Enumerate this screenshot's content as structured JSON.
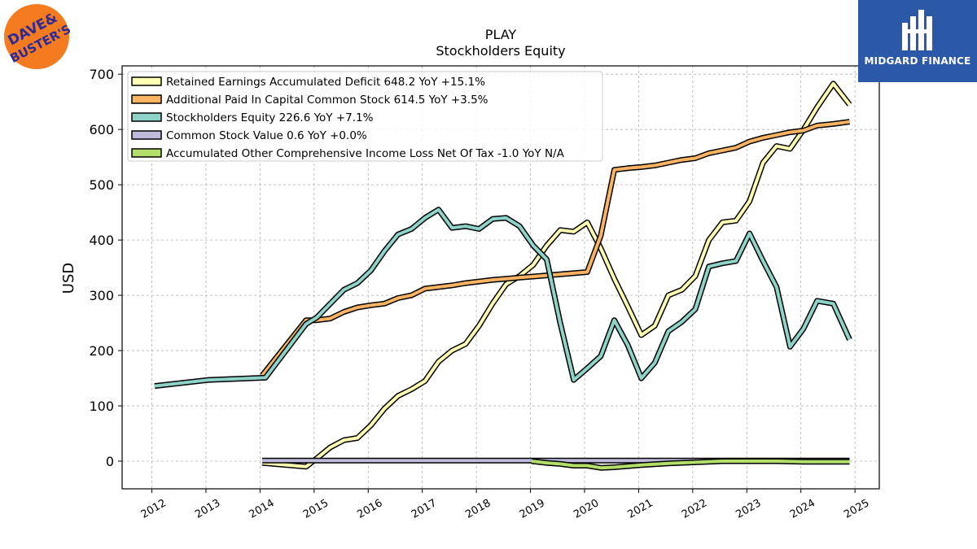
{
  "brand": {
    "left_logo_text": "DAVE & BUSTER'S",
    "right_logo_text": "MIDGARD FINANCE",
    "right_logo_bg": "#2c58a8"
  },
  "chart_data": {
    "type": "line",
    "title": "PLAY",
    "subtitle": "Stockholders  Equity",
    "xlabel": "",
    "ylabel": "USD",
    "ylim": [
      -50,
      715
    ],
    "xlim": [
      2011.45,
      2025.45
    ],
    "yticks": [
      0,
      100,
      200,
      300,
      400,
      500,
      600,
      700
    ],
    "xticks": [
      "2012",
      "2013",
      "2014",
      "2015",
      "2016",
      "2017",
      "2018",
      "2019",
      "2020",
      "2021",
      "2022",
      "2023",
      "2024",
      "2025"
    ],
    "grid": true,
    "legend_position": "top-left",
    "series": [
      {
        "name": "Retained Earnings Accumulated Deficit  648.2 YoY +15.1%",
        "color": "#ffffb3",
        "points": [
          [
            2014.04,
            -3
          ],
          [
            2014.85,
            -10
          ],
          [
            2015.05,
            5
          ],
          [
            2015.3,
            25
          ],
          [
            2015.55,
            38
          ],
          [
            2015.8,
            42
          ],
          [
            2016.05,
            65
          ],
          [
            2016.3,
            95
          ],
          [
            2016.55,
            118
          ],
          [
            2016.8,
            130
          ],
          [
            2017.05,
            145
          ],
          [
            2017.3,
            180
          ],
          [
            2017.55,
            200
          ],
          [
            2017.8,
            212
          ],
          [
            2018.05,
            245
          ],
          [
            2018.3,
            285
          ],
          [
            2018.55,
            320
          ],
          [
            2018.8,
            335
          ],
          [
            2019.05,
            355
          ],
          [
            2019.3,
            390
          ],
          [
            2019.55,
            418
          ],
          [
            2019.8,
            415
          ],
          [
            2020.05,
            432
          ],
          [
            2020.3,
            385
          ],
          [
            2020.55,
            330
          ],
          [
            2020.8,
            280
          ],
          [
            2021.05,
            228
          ],
          [
            2021.3,
            245
          ],
          [
            2021.55,
            300
          ],
          [
            2021.8,
            310
          ],
          [
            2022.05,
            335
          ],
          [
            2022.3,
            400
          ],
          [
            2022.55,
            432
          ],
          [
            2022.8,
            435
          ],
          [
            2023.05,
            470
          ],
          [
            2023.3,
            540
          ],
          [
            2023.55,
            570
          ],
          [
            2023.8,
            565
          ],
          [
            2024.05,
            600
          ],
          [
            2024.3,
            640
          ],
          [
            2024.6,
            683
          ],
          [
            2024.9,
            645
          ]
        ]
      },
      {
        "name": "Additional Paid In Capital Common Stock  614.5 YoY +3.5%",
        "color": "#fdb462",
        "points": [
          [
            2014.04,
            155
          ],
          [
            2014.85,
            255
          ],
          [
            2015.05,
            255
          ],
          [
            2015.3,
            258
          ],
          [
            2015.55,
            270
          ],
          [
            2015.8,
            278
          ],
          [
            2016.05,
            282
          ],
          [
            2016.3,
            285
          ],
          [
            2016.55,
            295
          ],
          [
            2016.8,
            300
          ],
          [
            2017.05,
            312
          ],
          [
            2017.3,
            315
          ],
          [
            2017.55,
            318
          ],
          [
            2017.8,
            322
          ],
          [
            2018.05,
            325
          ],
          [
            2018.3,
            328
          ],
          [
            2018.55,
            330
          ],
          [
            2018.8,
            332
          ],
          [
            2019.05,
            334
          ],
          [
            2019.3,
            336
          ],
          [
            2019.55,
            338
          ],
          [
            2019.8,
            340
          ],
          [
            2020.05,
            342
          ],
          [
            2020.3,
            408
          ],
          [
            2020.55,
            527
          ],
          [
            2020.8,
            530
          ],
          [
            2021.05,
            532
          ],
          [
            2021.3,
            535
          ],
          [
            2021.55,
            540
          ],
          [
            2021.8,
            545
          ],
          [
            2022.05,
            548
          ],
          [
            2022.3,
            557
          ],
          [
            2022.55,
            562
          ],
          [
            2022.8,
            567
          ],
          [
            2023.05,
            578
          ],
          [
            2023.3,
            585
          ],
          [
            2023.55,
            590
          ],
          [
            2023.8,
            595
          ],
          [
            2024.05,
            598
          ],
          [
            2024.3,
            607
          ],
          [
            2024.6,
            610
          ],
          [
            2024.9,
            614
          ]
        ]
      },
      {
        "name": "Stockholders Equity  226.6 YoY +7.1%",
        "color": "#8dd3c7",
        "points": [
          [
            2012.05,
            136
          ],
          [
            2013.05,
            147
          ],
          [
            2014.1,
            151
          ],
          [
            2014.85,
            248
          ],
          [
            2015.05,
            260
          ],
          [
            2015.3,
            285
          ],
          [
            2015.55,
            310
          ],
          [
            2015.8,
            322
          ],
          [
            2016.05,
            345
          ],
          [
            2016.3,
            380
          ],
          [
            2016.55,
            410
          ],
          [
            2016.8,
            420
          ],
          [
            2017.05,
            440
          ],
          [
            2017.3,
            455
          ],
          [
            2017.55,
            422
          ],
          [
            2017.8,
            425
          ],
          [
            2018.05,
            420
          ],
          [
            2018.3,
            438
          ],
          [
            2018.55,
            440
          ],
          [
            2018.8,
            425
          ],
          [
            2019.05,
            390
          ],
          [
            2019.3,
            365
          ],
          [
            2019.55,
            250
          ],
          [
            2019.8,
            147
          ],
          [
            2020.05,
            168
          ],
          [
            2020.3,
            190
          ],
          [
            2020.55,
            255
          ],
          [
            2020.8,
            210
          ],
          [
            2021.05,
            150
          ],
          [
            2021.3,
            178
          ],
          [
            2021.55,
            235
          ],
          [
            2021.8,
            252
          ],
          [
            2022.05,
            275
          ],
          [
            2022.3,
            352
          ],
          [
            2022.55,
            358
          ],
          [
            2022.8,
            362
          ],
          [
            2023.05,
            412
          ],
          [
            2023.3,
            362
          ],
          [
            2023.55,
            315
          ],
          [
            2023.8,
            207
          ],
          [
            2024.05,
            240
          ],
          [
            2024.3,
            290
          ],
          [
            2024.6,
            285
          ],
          [
            2024.9,
            220
          ]
        ]
      },
      {
        "name": "Common Stock Value  0.6 YoY +0.0%",
        "color": "#bebada",
        "points": [
          [
            2014.04,
            1
          ],
          [
            2024.9,
            1
          ]
        ]
      },
      {
        "name": "Accumulated Other Comprehensive Income Loss Net Of Tax  -1.0 YoY N/A",
        "color": "#b3de69",
        "points": [
          [
            2019.02,
            0
          ],
          [
            2019.3,
            -3
          ],
          [
            2019.55,
            -5
          ],
          [
            2019.8,
            -8
          ],
          [
            2020.05,
            -8
          ],
          [
            2020.3,
            -12
          ],
          [
            2020.55,
            -11
          ],
          [
            2020.8,
            -9
          ],
          [
            2021.05,
            -7
          ],
          [
            2021.55,
            -4
          ],
          [
            2022.05,
            -2
          ],
          [
            2022.55,
            0
          ],
          [
            2023.05,
            0
          ],
          [
            2023.55,
            0
          ],
          [
            2024.05,
            -1
          ],
          [
            2024.9,
            -1
          ]
        ]
      }
    ]
  }
}
